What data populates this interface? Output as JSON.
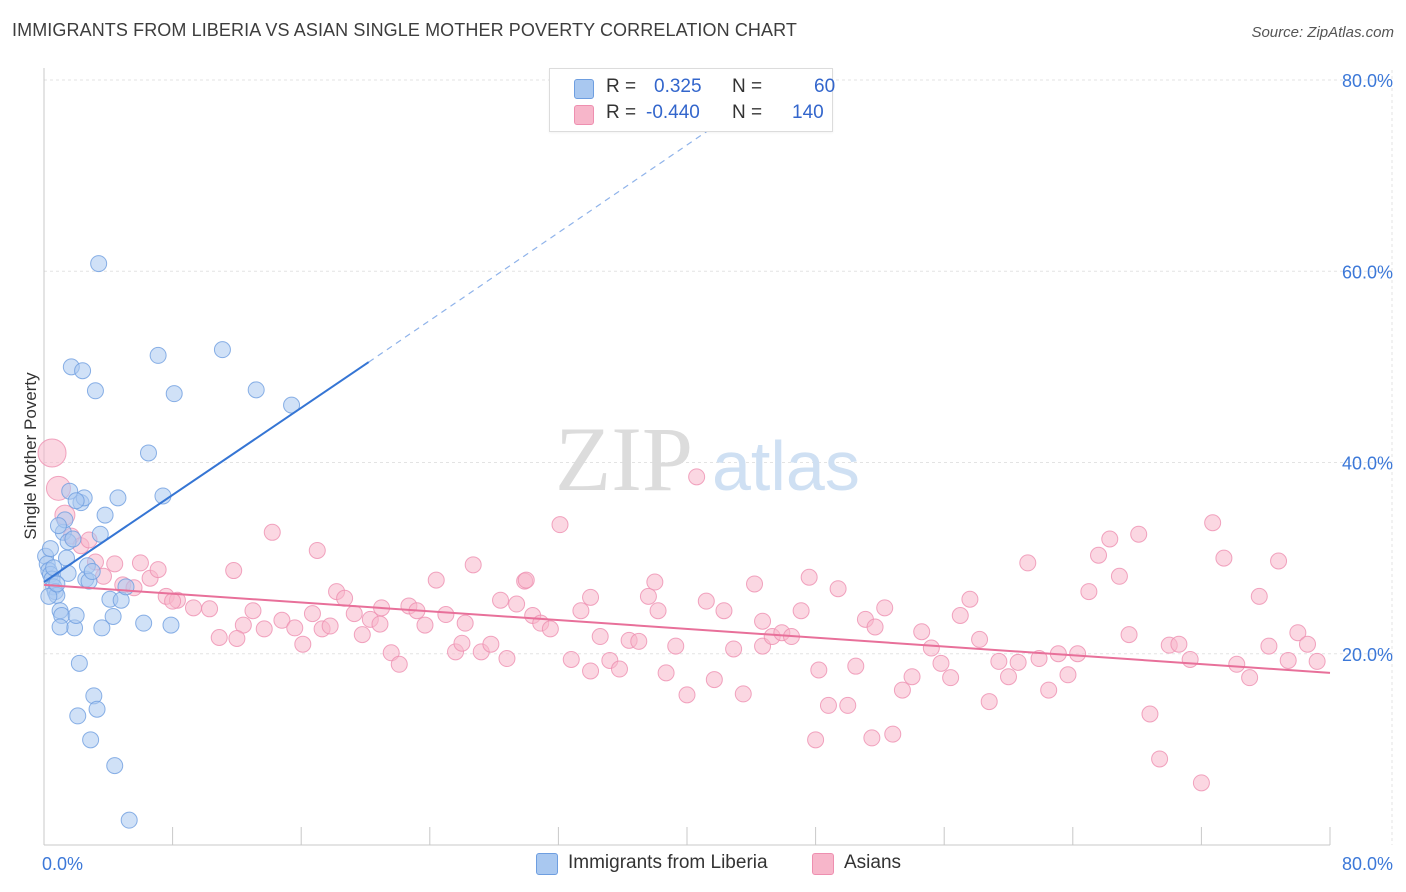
{
  "title": "IMMIGRANTS FROM LIBERIA VS ASIAN SINGLE MOTHER POVERTY CORRELATION CHART",
  "source": "Source: ZipAtlas.com",
  "watermark": {
    "zip": "ZIP",
    "atlas": "atlas"
  },
  "legend": {
    "r_label": "R =",
    "n_label": "N =",
    "rows": [
      {
        "r": "0.325",
        "n": "60",
        "color": "#a9c8f0"
      },
      {
        "r": "-0.440",
        "n": "140",
        "color": "#f7b6ca"
      }
    ]
  },
  "bottom_legend": [
    {
      "label": "Immigrants from Liberia",
      "color": "#a9c8f0"
    },
    {
      "label": "Asians",
      "color": "#f7b6ca"
    }
  ],
  "chart_data": {
    "type": "scatter",
    "ylabel": "Single Mother Poverty",
    "xlim": [
      0,
      80
    ],
    "ylim": [
      0,
      80
    ],
    "x_tick_labels": [
      "0.0%",
      "80.0%"
    ],
    "y_tick_labels": [
      {
        "value": 20,
        "label": "20.0%"
      },
      {
        "value": 40,
        "label": "40.0%"
      },
      {
        "value": 60,
        "label": "60.0%"
      },
      {
        "value": 80,
        "label": "80.0%"
      }
    ],
    "grid": true,
    "colors": {
      "blue_line": "#3575d4",
      "pink_line": "#e8709a",
      "tick_text": "#3c78d8"
    },
    "series": [
      {
        "name": "Immigrants from Liberia",
        "color": "#a9c8f0",
        "stroke": "#6e9ee0",
        "trend": {
          "x0": 0,
          "y0": 27.5,
          "x1": 20.2,
          "y1": 50.5,
          "dash_to_x": 42,
          "dash_to_y": 75.5
        },
        "points": [
          [
            0.1,
            30.2
          ],
          [
            0.2,
            29.4
          ],
          [
            0.3,
            28.7
          ],
          [
            0.4,
            28.3
          ],
          [
            0.5,
            27.8
          ],
          [
            0.6,
            27.0
          ],
          [
            0.7,
            26.5
          ],
          [
            0.8,
            26.1
          ],
          [
            1.0,
            24.5
          ],
          [
            1.1,
            24.0
          ],
          [
            1.2,
            32.7
          ],
          [
            1.3,
            34.0
          ],
          [
            1.4,
            30.0
          ],
          [
            1.5,
            31.7
          ],
          [
            1.6,
            37.0
          ],
          [
            1.7,
            50.0
          ],
          [
            1.8,
            32.0
          ],
          [
            1.9,
            22.7
          ],
          [
            2.0,
            24.0
          ],
          [
            2.1,
            13.5
          ],
          [
            2.2,
            19.0
          ],
          [
            2.3,
            35.8
          ],
          [
            2.4,
            49.6
          ],
          [
            2.5,
            36.3
          ],
          [
            2.6,
            27.8
          ],
          [
            2.7,
            29.2
          ],
          [
            2.8,
            27.6
          ],
          [
            2.9,
            11.0
          ],
          [
            3.0,
            28.6
          ],
          [
            3.1,
            15.6
          ],
          [
            3.2,
            47.5
          ],
          [
            3.3,
            14.2
          ],
          [
            3.4,
            60.8
          ],
          [
            3.5,
            32.5
          ],
          [
            3.6,
            22.7
          ],
          [
            3.8,
            34.5
          ],
          [
            4.1,
            25.7
          ],
          [
            4.3,
            23.9
          ],
          [
            4.4,
            8.3
          ],
          [
            4.6,
            36.3
          ],
          [
            4.8,
            25.6
          ],
          [
            5.1,
            27.0
          ],
          [
            5.3,
            2.6
          ],
          [
            6.2,
            23.2
          ],
          [
            6.5,
            41.0
          ],
          [
            7.1,
            51.2
          ],
          [
            7.4,
            36.5
          ],
          [
            7.9,
            23.0
          ],
          [
            8.1,
            47.2
          ],
          [
            11.1,
            51.8
          ],
          [
            13.2,
            47.6
          ],
          [
            15.4,
            46.0
          ],
          [
            0.3,
            26.0
          ],
          [
            0.6,
            29.0
          ],
          [
            1.0,
            22.8
          ],
          [
            0.9,
            33.4
          ],
          [
            1.5,
            28.4
          ],
          [
            2.0,
            36.0
          ],
          [
            0.4,
            31.0
          ],
          [
            0.8,
            27.3
          ]
        ]
      },
      {
        "name": "Asians",
        "color": "#f7b6ca",
        "stroke": "#ee8fb0",
        "trend": {
          "x0": 0,
          "y0": 27.2,
          "x1": 80,
          "y1": 18.0
        },
        "points": [
          [
            0.5,
            41.0
          ],
          [
            0.9,
            37.3
          ],
          [
            1.3,
            34.5
          ],
          [
            1.7,
            32.3
          ],
          [
            2.3,
            31.3
          ],
          [
            2.8,
            31.9
          ],
          [
            3.2,
            29.6
          ],
          [
            3.7,
            28.1
          ],
          [
            4.4,
            29.4
          ],
          [
            4.9,
            27.2
          ],
          [
            5.6,
            26.9
          ],
          [
            6.0,
            29.5
          ],
          [
            6.6,
            27.9
          ],
          [
            7.1,
            28.8
          ],
          [
            7.6,
            26.0
          ],
          [
            8.3,
            25.6
          ],
          [
            9.3,
            24.8
          ],
          [
            10.3,
            24.7
          ],
          [
            10.9,
            21.7
          ],
          [
            11.8,
            28.7
          ],
          [
            12.4,
            23.0
          ],
          [
            13.0,
            24.5
          ],
          [
            13.7,
            22.6
          ],
          [
            14.2,
            32.7
          ],
          [
            14.8,
            23.5
          ],
          [
            15.6,
            22.7
          ],
          [
            16.1,
            21.0
          ],
          [
            16.7,
            24.2
          ],
          [
            17.3,
            22.6
          ],
          [
            17.8,
            22.9
          ],
          [
            18.2,
            26.5
          ],
          [
            18.7,
            25.8
          ],
          [
            19.3,
            24.2
          ],
          [
            19.8,
            22.0
          ],
          [
            20.3,
            23.6
          ],
          [
            20.9,
            23.1
          ],
          [
            21.6,
            20.1
          ],
          [
            22.1,
            18.9
          ],
          [
            22.7,
            25.0
          ],
          [
            23.2,
            24.5
          ],
          [
            23.7,
            23.0
          ],
          [
            24.4,
            27.7
          ],
          [
            25.0,
            24.1
          ],
          [
            25.6,
            20.2
          ],
          [
            26.2,
            23.2
          ],
          [
            26.7,
            29.3
          ],
          [
            27.2,
            20.2
          ],
          [
            27.8,
            21.0
          ],
          [
            28.4,
            25.6
          ],
          [
            28.8,
            19.5
          ],
          [
            29.4,
            25.2
          ],
          [
            29.9,
            27.6
          ],
          [
            30.4,
            24.0
          ],
          [
            30.9,
            23.2
          ],
          [
            31.5,
            22.6
          ],
          [
            32.1,
            33.5
          ],
          [
            32.8,
            19.4
          ],
          [
            33.4,
            24.5
          ],
          [
            34.0,
            18.2
          ],
          [
            34.6,
            21.8
          ],
          [
            35.2,
            19.3
          ],
          [
            35.8,
            18.4
          ],
          [
            36.4,
            21.4
          ],
          [
            37.0,
            21.3
          ],
          [
            37.6,
            26.0
          ],
          [
            38.2,
            24.5
          ],
          [
            38.7,
            18.0
          ],
          [
            39.3,
            20.8
          ],
          [
            40.0,
            15.7
          ],
          [
            40.6,
            38.5
          ],
          [
            41.2,
            25.5
          ],
          [
            41.7,
            17.3
          ],
          [
            42.3,
            24.5
          ],
          [
            42.9,
            20.5
          ],
          [
            43.5,
            15.8
          ],
          [
            44.2,
            27.3
          ],
          [
            44.7,
            20.8
          ],
          [
            45.3,
            21.8
          ],
          [
            45.9,
            22.2
          ],
          [
            46.5,
            21.8
          ],
          [
            47.1,
            24.5
          ],
          [
            47.6,
            28.0
          ],
          [
            48.2,
            18.3
          ],
          [
            48.8,
            14.6
          ],
          [
            49.4,
            26.8
          ],
          [
            50.0,
            14.6
          ],
          [
            50.5,
            18.7
          ],
          [
            51.1,
            23.6
          ],
          [
            51.7,
            22.8
          ],
          [
            52.3,
            24.8
          ],
          [
            52.8,
            11.6
          ],
          [
            53.4,
            16.2
          ],
          [
            54.0,
            17.6
          ],
          [
            54.6,
            22.3
          ],
          [
            55.2,
            20.6
          ],
          [
            55.8,
            19.0
          ],
          [
            56.4,
            17.5
          ],
          [
            57.0,
            24.0
          ],
          [
            57.6,
            25.7
          ],
          [
            58.2,
            21.5
          ],
          [
            58.8,
            15.0
          ],
          [
            59.4,
            19.2
          ],
          [
            60.0,
            17.6
          ],
          [
            60.6,
            19.1
          ],
          [
            61.2,
            29.5
          ],
          [
            61.9,
            19.5
          ],
          [
            62.5,
            16.2
          ],
          [
            63.1,
            20.0
          ],
          [
            63.7,
            17.8
          ],
          [
            64.3,
            20.0
          ],
          [
            65.0,
            26.5
          ],
          [
            65.6,
            30.3
          ],
          [
            66.3,
            32.0
          ],
          [
            66.9,
            28.1
          ],
          [
            67.5,
            22.0
          ],
          [
            68.1,
            32.5
          ],
          [
            68.8,
            13.7
          ],
          [
            69.4,
            9.0
          ],
          [
            70.0,
            20.9
          ],
          [
            70.6,
            21.0
          ],
          [
            71.3,
            19.4
          ],
          [
            72.0,
            6.5
          ],
          [
            72.7,
            33.7
          ],
          [
            73.4,
            30.0
          ],
          [
            74.2,
            18.9
          ],
          [
            75.0,
            17.5
          ],
          [
            75.6,
            26.0
          ],
          [
            76.2,
            20.8
          ],
          [
            76.8,
            29.7
          ],
          [
            77.4,
            19.3
          ],
          [
            78.0,
            22.2
          ],
          [
            78.6,
            21.0
          ],
          [
            79.2,
            19.2
          ],
          [
            51.5,
            11.2
          ],
          [
            48.0,
            11.0
          ],
          [
            44.7,
            23.4
          ],
          [
            38.0,
            27.5
          ],
          [
            34.0,
            25.9
          ],
          [
            30.0,
            27.7
          ],
          [
            26.0,
            21.1
          ],
          [
            21.0,
            24.8
          ],
          [
            17.0,
            30.8
          ],
          [
            12.0,
            21.6
          ],
          [
            8.0,
            25.5
          ]
        ]
      }
    ]
  }
}
